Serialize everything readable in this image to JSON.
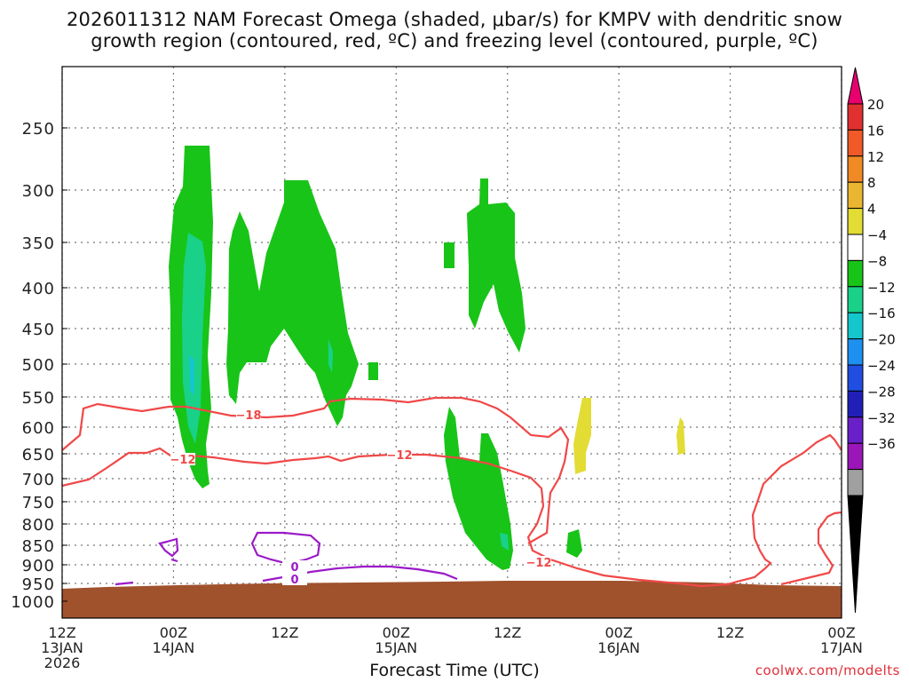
{
  "chart_data": {
    "type": "time-height",
    "title": "2026011312 NAM Forecast Omega (shaded, μbar/s) for KMPV with dendritic snow",
    "subtitle": "growth region (contoured, red, ºC) and freezing level (contoured, purple, ºC)",
    "xlabel": "Forecast Time (UTC)",
    "credit": "coolwx.com/modelts",
    "y_ticks": [
      "250",
      "300",
      "350",
      "400",
      "450",
      "500",
      "550",
      "600",
      "650",
      "700",
      "750",
      "800",
      "850",
      "900",
      "950",
      "1000"
    ],
    "x_ticks": [
      {
        "hours": 0,
        "lines": [
          "12Z",
          "13JAN",
          "2026"
        ]
      },
      {
        "hours": 12,
        "lines": [
          "00Z",
          "14JAN"
        ]
      },
      {
        "hours": 24,
        "lines": [
          "12Z"
        ]
      },
      {
        "hours": 36,
        "lines": [
          "00Z",
          "15JAN"
        ]
      },
      {
        "hours": 48,
        "lines": [
          "12Z"
        ]
      },
      {
        "hours": 60,
        "lines": [
          "00Z",
          "16JAN"
        ]
      },
      {
        "hours": 72,
        "lines": [
          "12Z"
        ]
      },
      {
        "hours": 84,
        "lines": [
          "00Z",
          "17JAN"
        ]
      }
    ],
    "grid": true,
    "colorbar": {
      "labels": [
        "20",
        "16",
        "12",
        "8",
        "4",
        "−4",
        "−8",
        "−12",
        "−16",
        "−20",
        "−24",
        "−28",
        "−32",
        "−36"
      ],
      "colors": [
        "#e8006f",
        "#e03030",
        "#ef5a28",
        "#f08a24",
        "#eab530",
        "#e2dc34",
        "#ffffff",
        "#18c418",
        "#1ad189",
        "#15c6cc",
        "#1e90f0",
        "#1f4ee0",
        "#2020b8",
        "#6a20c8",
        "#9a16b8",
        "#a0a0a0",
        "#000000"
      ]
    },
    "contour_labels": [
      "−18",
      "−12",
      "−12",
      "−12",
      "0",
      "0"
    ],
    "terrain_color": "#a0522d",
    "omega_color_green": "#18c418",
    "omega_color_teal": "#1ad189",
    "omega_color_yellow": "#e2dc34",
    "dgz_color": "#f04848",
    "freezing_color": "#9b1ac8"
  }
}
